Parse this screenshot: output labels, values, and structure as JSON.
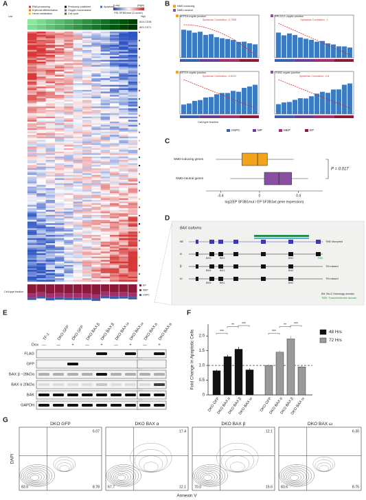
{
  "panel_labels": [
    "A",
    "B",
    "C",
    "D",
    "E",
    "F",
    "G"
  ],
  "panel_a": {
    "legend": [
      "RNA processing",
      "Erythroid differentiation",
      "Heme metabolism",
      "Previously published",
      "Oxygen homeostasis",
      "Cell cycle",
      "Apoptosis"
    ],
    "scale_low": "(Low)",
    "scale_high": "(High)",
    "scale_title": "PSI SF3B1mut (Z-score)",
    "track_low": "Low",
    "track_high": "High",
    "tracks": [
      "AD4-CD38",
      "AE1-CD71"
    ],
    "fraction_label": "Cell-type fraction",
    "fraction_legend": [
      "EP",
      "MEP",
      "HSPC"
    ]
  },
  "panel_b": {
    "legend": [
      "NMD-inducing",
      "NMD-neutral"
    ],
    "plots": [
      {
        "title": "MTF1A cryptic junction",
        "stat": "Spearman Correlation: -0.7955"
      },
      {
        "title": "RPL22L1 cryptic junction",
        "stat": "Spearman Correlation: -1"
      },
      {
        "title": "KRT15 cryptic junction",
        "stat": "Spearman Correlation: -0.8312"
      },
      {
        "title": "ITGB2 cryptic junction",
        "stat": "Spearman Correlation: -0.8"
      }
    ],
    "x_label": "Cell-type fraction",
    "cell_types": [
      {
        "name": "HSPC",
        "color": "#3a5fa8"
      },
      {
        "name": "MP",
        "color": "#6a3d8f"
      },
      {
        "name": "MEP",
        "color": "#a03070"
      },
      {
        "name": "EP",
        "color": "#8b1a3a"
      }
    ]
  },
  "panel_c": {
    "series": [
      {
        "name": "NMD-inducing genes",
        "color": "#f2a51c",
        "stats": [
          -0.45,
          -0.18,
          -0.02,
          0.08,
          0.35
        ]
      },
      {
        "name": "NMD-neutral genes",
        "color": "#8a4fa3",
        "stats": [
          -0.3,
          0.05,
          0.2,
          0.33,
          0.5
        ]
      }
    ],
    "xlim": [
      -0.55,
      0.65
    ],
    "xticks": [
      -0.4,
      0,
      0.4
    ],
    "x_label": "log2(EP SF3B1mut / EP SF3B1wt gene expression)",
    "p_value": "P = 0.017"
  },
  "panel_d": {
    "title": "BAX isoforms",
    "isoforms": [
      "wt",
      "α",
      "β",
      "ω"
    ],
    "domains": [
      "BH3",
      "BH1",
      "BH2",
      "TMD"
    ],
    "notes": [
      "TMD disrupted",
      "TM missed",
      "TM missed"
    ],
    "key": [
      "BH: Bcl-2 Homology domain",
      "TMD: Transmembrane domain"
    ]
  },
  "panel_e": {
    "lanes": [
      "TF-1",
      "DKO GFP",
      "DKO GFP",
      "DKO BAX β",
      "DKO BAX β",
      "DKO BAX ω",
      "DKO BAX ω",
      "DKO BAX α",
      "DKO BAX α"
    ],
    "dox_label": "Dox",
    "dox": [
      "—",
      "—",
      "+",
      "—",
      "+",
      "—",
      "+",
      "—",
      "+"
    ],
    "rows": [
      "FLAG",
      "GFP",
      "BAX β ~28kDa",
      "BAX α 20kDa",
      "BAK",
      "GAPDH"
    ]
  },
  "panel_f": {
    "y_label": "Fold Change In Apoptotic Cells",
    "ylim": [
      0,
      2.4
    ],
    "yticks": [
      0,
      0.5,
      {
        "value": 1,
        "label": "1.0"
      },
      1.5,
      {
        "value": 2,
        "label": "2.0"
      }
    ],
    "categories": [
      "DKO GFP",
      "DKO BAX α",
      "DKO BAX β",
      "DKO BAX ω"
    ],
    "series": [
      {
        "name": "48 Hrs",
        "color": "#111111",
        "values": [
          0.82,
          1.3,
          1.55,
          0.85
        ],
        "errors": [
          0.04,
          0.06,
          0.08,
          0.05
        ]
      },
      {
        "name": "72 Hrs",
        "color": "#9a9a9a",
        "values": [
          1.0,
          1.45,
          1.9,
          0.95
        ],
        "errors": [
          0.04,
          0.05,
          0.1,
          0.05
        ]
      }
    ],
    "significance": [
      "***",
      "**",
      "***"
    ]
  },
  "panel_g": {
    "y_label": "DAPI",
    "x_label": "Annexin V",
    "plots": [
      {
        "title": "DKO GFP",
        "upper_right": "6.07",
        "lower_left": "83.5",
        "lower_right": "8.78"
      },
      {
        "title": "DKO BAX α",
        "upper_right": "17.4",
        "lower_left": "67.7",
        "lower_right": "12.1"
      },
      {
        "title": "DKO BAX β",
        "upper_right": "12.1",
        "lower_left": "70.0",
        "lower_right": "15.6"
      },
      {
        "title": "DKO BAX ω",
        "upper_right": "6.30",
        "lower_left": "83.6",
        "lower_right": "8.75"
      }
    ]
  }
}
